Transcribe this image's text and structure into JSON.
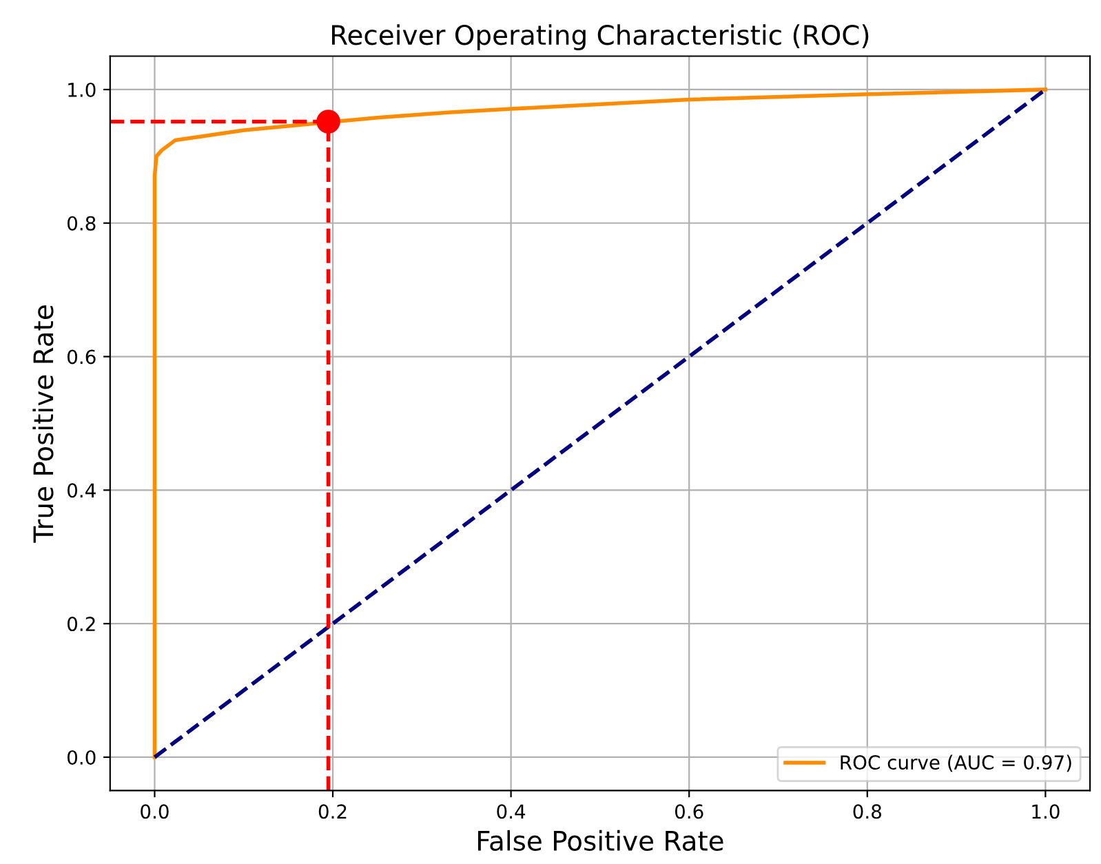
{
  "chart_data": {
    "type": "line",
    "title": "Receiver Operating Characteristic (ROC)",
    "xlabel": "False Positive Rate",
    "ylabel": "True Positive Rate",
    "xlim": [
      -0.05,
      1.05
    ],
    "ylim": [
      -0.05,
      1.05
    ],
    "xticks": [
      {
        "value": 0,
        "label": "0.0"
      },
      0.2,
      0.4,
      0.6,
      0.8,
      {
        "value": 1,
        "label": "1.0"
      }
    ],
    "yticks": [
      {
        "value": 0,
        "label": "0.0"
      },
      0.2,
      0.4,
      0.6,
      0.8,
      {
        "value": 1,
        "label": "1.0"
      }
    ],
    "grid": true,
    "legend": "bottom right",
    "marker": "none",
    "series": [
      {
        "name": "ROC curve (AUC = 0.97)",
        "color": "#ff8c00",
        "line_style": "solid",
        "x": [
          0,
          0,
          0.002,
          0.008,
          0.023,
          0.054,
          0.1,
          0.25,
          0.332,
          0.4,
          0.6,
          0.8,
          1
        ],
        "values": [
          0,
          0.87,
          0.9,
          0.909,
          0.924,
          0.93,
          0.939,
          0.958,
          0.966,
          0.971,
          0.985,
          0.993,
          1
        ]
      },
      {
        "color": "#000080",
        "line_style": "dashed",
        "x": [
          0,
          1
        ],
        "values": [
          0,
          1
        ]
      },
      {
        "color": "#ff0000",
        "line_style": "dashed",
        "x": [
          -0.05,
          0.195
        ],
        "values": [
          0.952,
          0.952
        ]
      },
      {
        "color": "#ff0000",
        "line_style": "dashed",
        "x": [
          0.195,
          0.195
        ],
        "values": [
          -0.05,
          0.952
        ]
      },
      {
        "type": "scatter",
        "color": "#ff0000",
        "marker": "circle",
        "x": [
          0.195
        ],
        "values": [
          0.952
        ]
      }
    ]
  }
}
